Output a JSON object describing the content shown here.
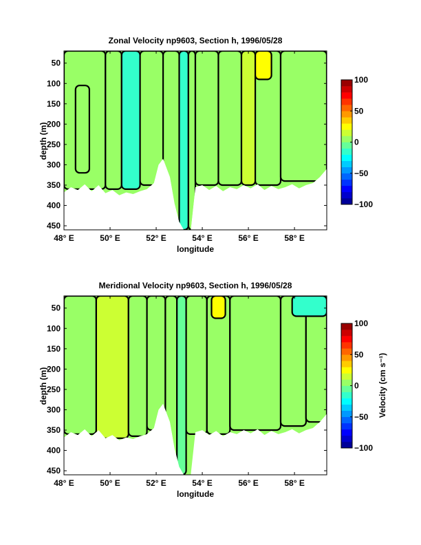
{
  "chart_data": [
    {
      "type": "heatmap",
      "subtype": "filled-contour section",
      "title": "Zonal Velocity np9603, Section h, 1996/05/28",
      "xlabel": "longitude",
      "ylabel": "depth (m)",
      "xlim": [
        48,
        59.4
      ],
      "ylim": [
        460,
        20
      ],
      "y_reversed": true,
      "x_ticks": [
        48,
        50,
        52,
        54,
        56,
        58
      ],
      "x_tick_labels": [
        "48° E",
        "50° E",
        "52° E",
        "54° E",
        "56° E",
        "58° E"
      ],
      "y_ticks": [
        50,
        100,
        150,
        200,
        250,
        300,
        350,
        400,
        450
      ],
      "y_tick_labels": [
        "50",
        "100",
        "150",
        "200",
        "250",
        "300",
        "350",
        "400",
        "450"
      ],
      "colorbar": {
        "label": "",
        "range": [
          -100,
          100
        ],
        "ticks": [
          100,
          50,
          0,
          -50,
          -100
        ],
        "tick_labels": [
          "100",
          "50",
          "0",
          "−50",
          "−100"
        ]
      },
      "bottom_depth_profile": {
        "lon": [
          48,
          48.3,
          48.6,
          48.9,
          49.2,
          49.5,
          49.8,
          50.1,
          50.4,
          50.7,
          51.0,
          51.3,
          51.6,
          51.9,
          52.1,
          52.3,
          52.6,
          52.8,
          53.0,
          53.2,
          53.5,
          53.7,
          54.0,
          54.3,
          54.6,
          54.9,
          55.2,
          55.5,
          55.8,
          56.1,
          56.4,
          56.7,
          57.0,
          57.3,
          57.6,
          57.9,
          58.2,
          58.5,
          58.8,
          59.1,
          59.4
        ],
        "depth": [
          368,
          355,
          362,
          348,
          365,
          350,
          370,
          362,
          375,
          368,
          372,
          365,
          360,
          345,
          300,
          285,
          330,
          395,
          440,
          460,
          460,
          355,
          350,
          362,
          352,
          365,
          355,
          360,
          350,
          358,
          348,
          362,
          352,
          360,
          355,
          348,
          358,
          350,
          345,
          330,
          310
        ]
      },
      "regions": [
        {
          "lon": [
            48.0,
            49.8
          ],
          "dmin": 20,
          "dmax": 360,
          "value": 3
        },
        {
          "lon": [
            48.5,
            49.1
          ],
          "dmin": 105,
          "dmax": 320,
          "value": 9
        },
        {
          "lon": [
            49.8,
            50.5
          ],
          "dmin": 20,
          "dmax": 360,
          "value": 5
        },
        {
          "lon": [
            50.5,
            51.3
          ],
          "dmin": 20,
          "dmax": 360,
          "value": -15
        },
        {
          "lon": [
            51.3,
            52.3
          ],
          "dmin": 20,
          "dmax": 350,
          "value": 2
        },
        {
          "lon": [
            52.3,
            53.0
          ],
          "dmin": 20,
          "dmax": 460,
          "value": 0
        },
        {
          "lon": [
            53.0,
            53.4
          ],
          "dmin": 20,
          "dmax": 460,
          "value": -12
        },
        {
          "lon": [
            53.4,
            53.7
          ],
          "dmin": 20,
          "dmax": 460,
          "value": 8
        },
        {
          "lon": [
            53.7,
            54.7
          ],
          "dmin": 20,
          "dmax": 350,
          "value": 9
        },
        {
          "lon": [
            54.7,
            55.7
          ],
          "dmin": 20,
          "dmax": 350,
          "value": 1
        },
        {
          "lon": [
            55.7,
            56.3
          ],
          "dmin": 20,
          "dmax": 350,
          "value": 11
        },
        {
          "lon": [
            56.3,
            57.4
          ],
          "dmin": 20,
          "dmax": 350,
          "value": 2
        },
        {
          "lon": [
            56.3,
            57.0
          ],
          "dmin": 20,
          "dmax": 90,
          "value": 22
        },
        {
          "lon": [
            57.4,
            59.4
          ],
          "dmin": 20,
          "dmax": 340,
          "value": 3
        }
      ]
    },
    {
      "type": "heatmap",
      "subtype": "filled-contour section",
      "title": "Meridional Velocity np9603, Section h, 1996/05/28",
      "xlabel": "longitude",
      "ylabel": "depth (m)",
      "xlim": [
        48,
        59.4
      ],
      "ylim": [
        460,
        20
      ],
      "y_reversed": true,
      "x_ticks": [
        48,
        50,
        52,
        54,
        56,
        58
      ],
      "x_tick_labels": [
        "48° E",
        "50° E",
        "52° E",
        "54° E",
        "56° E",
        "58° E"
      ],
      "y_ticks": [
        50,
        100,
        150,
        200,
        250,
        300,
        350,
        400,
        450
      ],
      "y_tick_labels": [
        "50",
        "100",
        "150",
        "200",
        "250",
        "300",
        "350",
        "400",
        "450"
      ],
      "colorbar": {
        "label": "Velocity (cm s⁻¹)",
        "range": [
          -100,
          100
        ],
        "ticks": [
          100,
          50,
          0,
          -50,
          -100
        ],
        "tick_labels": [
          "100",
          "50",
          "0",
          "−50",
          "−100"
        ]
      },
      "bottom_depth_profile": {
        "lon": [
          48,
          48.3,
          48.6,
          48.9,
          49.2,
          49.5,
          49.8,
          50.1,
          50.4,
          50.7,
          51.0,
          51.3,
          51.6,
          51.9,
          52.1,
          52.3,
          52.6,
          52.8,
          53.0,
          53.2,
          53.5,
          53.7,
          54.0,
          54.3,
          54.6,
          54.9,
          55.2,
          55.5,
          55.8,
          56.1,
          56.4,
          56.7,
          57.0,
          57.3,
          57.6,
          57.9,
          58.2,
          58.5,
          58.8,
          59.1,
          59.4
        ],
        "depth": [
          368,
          355,
          362,
          348,
          365,
          350,
          370,
          362,
          375,
          368,
          372,
          365,
          360,
          345,
          300,
          285,
          330,
          395,
          440,
          460,
          460,
          355,
          350,
          362,
          352,
          365,
          355,
          360,
          350,
          358,
          348,
          362,
          352,
          360,
          355,
          348,
          358,
          350,
          345,
          330,
          310
        ]
      },
      "regions": [
        {
          "lon": [
            48.0,
            49.4
          ],
          "dmin": 20,
          "dmax": 360,
          "value": 2
        },
        {
          "lon": [
            49.4,
            50.8
          ],
          "dmin": 20,
          "dmax": 370,
          "value": 10
        },
        {
          "lon": [
            50.8,
            51.6
          ],
          "dmin": 20,
          "dmax": 365,
          "value": 3
        },
        {
          "lon": [
            51.6,
            52.4
          ],
          "dmin": 20,
          "dmax": 350,
          "value": 8
        },
        {
          "lon": [
            52.4,
            52.9
          ],
          "dmin": 20,
          "dmax": 420,
          "value": 1
        },
        {
          "lon": [
            52.9,
            53.3
          ],
          "dmin": 20,
          "dmax": 460,
          "value": -5
        },
        {
          "lon": [
            53.3,
            54.2
          ],
          "dmin": 20,
          "dmax": 360,
          "value": 2
        },
        {
          "lon": [
            54.2,
            55.2
          ],
          "dmin": 20,
          "dmax": 360,
          "value": 9
        },
        {
          "lon": [
            54.4,
            55.0
          ],
          "dmin": 20,
          "dmax": 75,
          "value": 24
        },
        {
          "lon": [
            55.2,
            57.4
          ],
          "dmin": 20,
          "dmax": 350,
          "value": 2
        },
        {
          "lon": [
            57.4,
            58.5
          ],
          "dmin": 20,
          "dmax": 340,
          "value": 9
        },
        {
          "lon": [
            58.5,
            59.4
          ],
          "dmin": 20,
          "dmax": 330,
          "value": 3
        },
        {
          "lon": [
            57.9,
            59.4
          ],
          "dmin": 20,
          "dmax": 70,
          "value": -14
        }
      ]
    }
  ]
}
